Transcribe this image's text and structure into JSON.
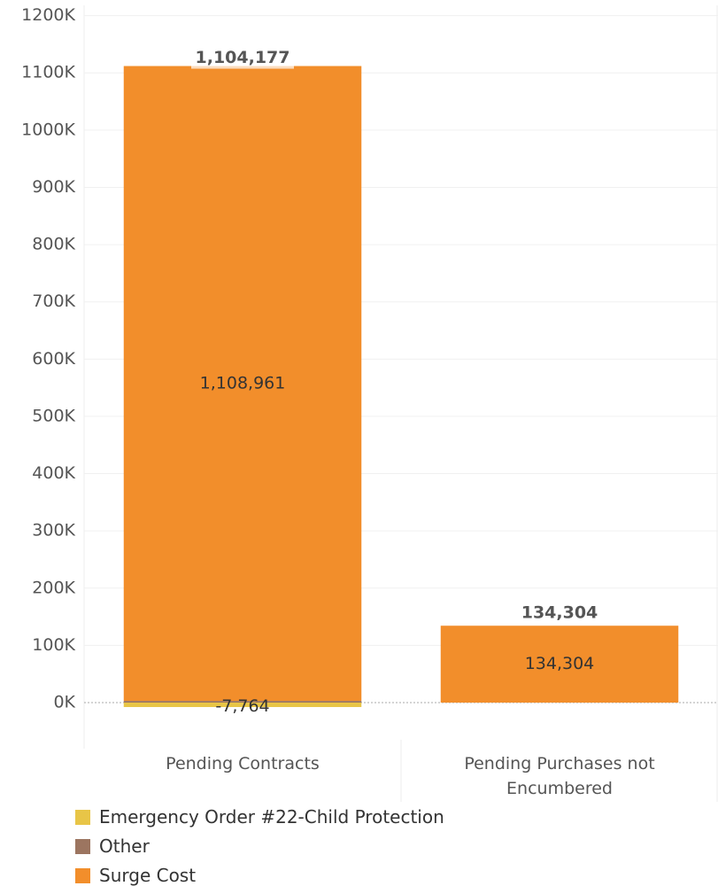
{
  "chart_data": {
    "type": "stacked_bar",
    "categories": [
      "Pending Contracts",
      "Pending Purchases not Encumbered"
    ],
    "series": [
      {
        "name": "Emergency Order #22-Child Protection",
        "color": "#e8c547",
        "values": [
          -7764,
          null
        ],
        "value_labels": [
          "-7,764",
          null
        ]
      },
      {
        "name": "Other",
        "color": "#9c7560",
        "values": [
          2980,
          null
        ]
      },
      {
        "name": "Surge Cost",
        "color": "#f28e2b",
        "values": [
          1108961,
          134304
        ],
        "value_labels": [
          "1,108,961",
          "134,304"
        ]
      }
    ],
    "totals": [
      1104177,
      134304
    ],
    "total_labels": [
      "1,104,177",
      "134,304"
    ],
    "ylim": [
      -65000,
      1218000
    ],
    "yticks": [
      {
        "value": 0,
        "label": "0K"
      },
      {
        "value": 100000,
        "label": "100K"
      },
      {
        "value": 200000,
        "label": "200K"
      },
      {
        "value": 300000,
        "label": "300K"
      },
      {
        "value": 400000,
        "label": "400K"
      },
      {
        "value": 500000,
        "label": "500K"
      },
      {
        "value": 600000,
        "label": "600K"
      },
      {
        "value": 700000,
        "label": "700K"
      },
      {
        "value": 800000,
        "label": "800K"
      },
      {
        "value": 900000,
        "label": "900K"
      },
      {
        "value": 1000000,
        "label": "1000K"
      },
      {
        "value": 1100000,
        "label": "1100K"
      },
      {
        "value": 1200000,
        "label": "1200K"
      }
    ],
    "grid": true
  }
}
